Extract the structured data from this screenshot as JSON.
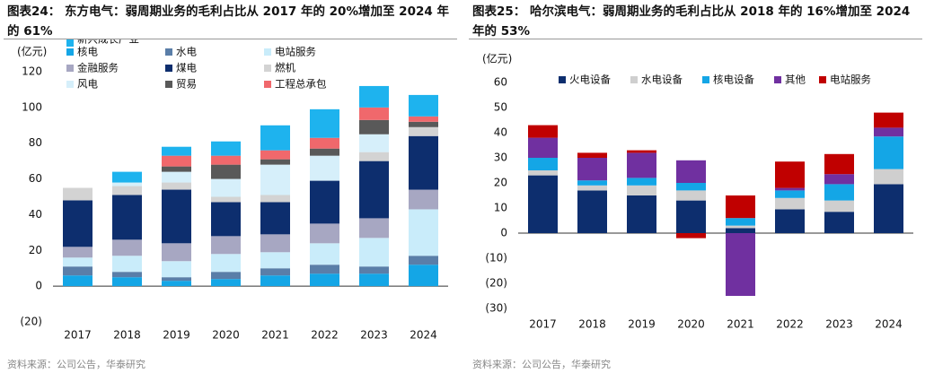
{
  "chart_data": [
    {
      "type": "bar",
      "stacked": true,
      "title": "图表24： 东方电气：弱周期业务的毛利占比从 2017 年的 20%增加至 2024 年的 61%",
      "y_label": "(亿元)",
      "source": "资料来源：公司公告，华泰研究",
      "categories": [
        "2017",
        "2018",
        "2019",
        "2020",
        "2021",
        "2022",
        "2023",
        "2024"
      ],
      "ylim": [
        -20,
        120
      ],
      "yticks": [
        {
          "value": -20,
          "label": "(20)"
        },
        0,
        20,
        40,
        60,
        80,
        100,
        120
      ],
      "series": [
        {
          "name": "核电",
          "color": "#14a6e6",
          "values": [
            6,
            5,
            3,
            4,
            6,
            7,
            7,
            12
          ]
        },
        {
          "name": "水电",
          "color": "#5a7ea8",
          "values": [
            5,
            3,
            2,
            4,
            4,
            5,
            4,
            5
          ]
        },
        {
          "name": "电站服务",
          "color": "#c9ecfa",
          "values": [
            5,
            9,
            9,
            10,
            9,
            12,
            16,
            26
          ]
        },
        {
          "name": "金融服务",
          "color": "#a7a7c2",
          "values": [
            6,
            9,
            10,
            10,
            10,
            11,
            11,
            11
          ]
        },
        {
          "name": "煤电",
          "color": "#0d2e6e",
          "values": [
            26,
            25,
            30,
            19,
            18,
            24,
            32,
            30
          ]
        },
        {
          "name": "燃机",
          "color": "#d3d3d3",
          "values": [
            7,
            5,
            4,
            3,
            4,
            0,
            5,
            5
          ]
        },
        {
          "name": "风电",
          "color": "#d6effa",
          "values": [
            0,
            2,
            6,
            10,
            17,
            14,
            10,
            0
          ]
        },
        {
          "name": "贸易",
          "color": "#595959",
          "values": [
            0,
            0,
            3,
            8,
            3,
            4,
            8,
            3
          ]
        },
        {
          "name": "工程总承包",
          "color": "#f0686c",
          "values": [
            0,
            0,
            6,
            5,
            5,
            6,
            7,
            3
          ]
        },
        {
          "name": "新兴成长产业",
          "color": "#1eb3ee",
          "values": [
            0,
            6,
            5,
            8,
            14,
            16,
            12,
            12
          ]
        }
      ]
    },
    {
      "type": "bar",
      "stacked": true,
      "title": "图表25： 哈尔滨电气：弱周期业务的毛利占比从 2018 年的 16%增加至 2024 年的 53%",
      "y_label": "(亿元)",
      "source": "资料来源：公司公告，华泰研究",
      "categories": [
        "2017",
        "2018",
        "2019",
        "2020",
        "2021",
        "2022",
        "2023",
        "2024"
      ],
      "ylim": [
        -30,
        60
      ],
      "yticks": [
        {
          "value": -30,
          "label": "(30)"
        },
        {
          "value": -20,
          "label": "(20)"
        },
        {
          "value": -10,
          "label": "(10)"
        },
        0,
        10,
        20,
        30,
        40,
        50,
        60
      ],
      "series": [
        {
          "name": "火电设备",
          "color": "#0d2e6e",
          "values": [
            23,
            17,
            15,
            13,
            2,
            9.5,
            8.5,
            19.5
          ]
        },
        {
          "name": "水电设备",
          "color": "#cfcfcf",
          "values": [
            2,
            2,
            4,
            4,
            1,
            4.5,
            4.5,
            6
          ]
        },
        {
          "name": "核电设备",
          "color": "#14a6e6",
          "values": [
            5,
            2,
            3,
            3,
            3,
            3,
            6.5,
            13
          ]
        },
        {
          "name": "其他",
          "color": "#7030a0",
          "values": [
            8,
            9,
            10,
            9,
            -25,
            1,
            4,
            3.5
          ]
        },
        {
          "name": "电站服务",
          "color": "#c00000",
          "values": [
            5,
            2,
            1,
            -2,
            9,
            10.5,
            8,
            6
          ]
        }
      ]
    }
  ]
}
